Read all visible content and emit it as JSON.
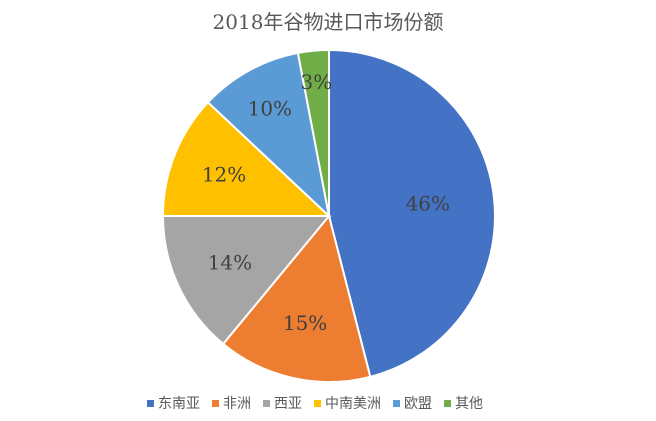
{
  "chart_data": {
    "type": "pie",
    "title": "2018年谷物进口市场份额",
    "categories": [
      "东南亚",
      "非洲",
      "西亚",
      "中南美洲",
      "欧盟",
      "其他"
    ],
    "values": [
      46,
      15,
      14,
      12,
      10,
      3
    ],
    "labels": [
      "46%",
      "15%",
      "14%",
      "12%",
      "10%",
      "3%"
    ],
    "colors": [
      "#4472C4",
      "#ED7D31",
      "#A5A5A5",
      "#FFC000",
      "#5B9BD5",
      "#70AD47"
    ],
    "legend_position": "bottom",
    "start_angle": "12 o'clock",
    "direction": "clockwise"
  }
}
